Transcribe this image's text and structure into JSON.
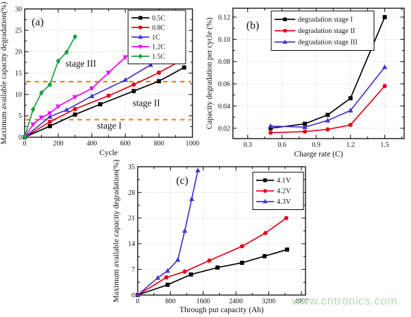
{
  "figure": {
    "watermark": "www.cntronics.com",
    "background": "#ffffff"
  },
  "colors": {
    "black": "#000000",
    "red": "#e60014",
    "blue": "#4433cc",
    "magenta": "#f400f4",
    "green": "#16a03c",
    "reference_orange": "#e08225",
    "grid": "#c9c9c9",
    "watermark_green": "#b7d8b7"
  },
  "chart_data": [
    {
      "id": "a",
      "type": "line",
      "panel_label": "(a)",
      "xlabel": "Cycle",
      "ylabel": "Maximum available capacity degradation(%)",
      "xlim": [
        0,
        1000
      ],
      "ylim": [
        0,
        30
      ],
      "xticks": [
        0,
        200,
        400,
        600,
        800,
        1000
      ],
      "xtick_labels": [
        "0",
        "200",
        "400",
        "600",
        "800",
        "1000"
      ],
      "yticks": [
        0,
        5,
        10,
        15,
        20,
        25,
        30
      ],
      "ytick_labels": [
        "0",
        "5",
        "10",
        "15",
        "20",
        "25",
        "30"
      ],
      "x_minor_step": 100,
      "y_minor_step": 2.5,
      "grid": true,
      "legend_position": "top-right",
      "series": [
        {
          "name": "0.5C",
          "color": "#000000",
          "marker": "square",
          "points": [
            [
              0,
              0
            ],
            [
              150,
              2.6
            ],
            [
              300,
              5.3
            ],
            [
              450,
              7.7
            ],
            [
              650,
              10.8
            ],
            [
              800,
              13.1
            ],
            [
              950,
              16.3
            ]
          ]
        },
        {
          "name": "0.8C",
          "color": "#e60014",
          "marker": "circle",
          "points": [
            [
              0,
              0
            ],
            [
              150,
              3.6
            ],
            [
              300,
              6.6
            ],
            [
              500,
              9.7
            ],
            [
              650,
              12.3
            ],
            [
              800,
              15.1
            ],
            [
              950,
              18.3
            ]
          ]
        },
        {
          "name": "1C",
          "color": "#4433cc",
          "marker": "triangle-up",
          "points": [
            [
              0,
              0
            ],
            [
              150,
              4.8
            ],
            [
              250,
              6.4
            ],
            [
              400,
              9.6
            ],
            [
              600,
              13.4
            ],
            [
              750,
              16.9
            ],
            [
              900,
              21.0
            ]
          ]
        },
        {
          "name": "1.2C",
          "color": "#f400f4",
          "marker": "triangle-down",
          "points": [
            [
              0,
              0
            ],
            [
              50,
              3.0
            ],
            [
              100,
              4.6
            ],
            [
              150,
              5.6
            ],
            [
              200,
              7.2
            ],
            [
              300,
              9.4
            ],
            [
              400,
              11.4
            ],
            [
              500,
              15.1
            ],
            [
              600,
              18.7
            ]
          ]
        },
        {
          "name": "1.5C",
          "color": "#16a03c",
          "marker": "diamond",
          "points": [
            [
              0,
              0
            ],
            [
              50,
              6.5
            ],
            [
              100,
              10.4
            ],
            [
              150,
              12.3
            ],
            [
              200,
              17.8
            ],
            [
              250,
              19.9
            ],
            [
              300,
              23.5
            ]
          ]
        }
      ],
      "reference_lines": [
        {
          "y": 4.1,
          "color": "#e08225",
          "style": "dashed"
        },
        {
          "y": 13.0,
          "color": "#e08225",
          "style": "dashed"
        }
      ],
      "annotations": [
        {
          "text": "stage I",
          "x": 505,
          "y": 2.0
        },
        {
          "text": "stage II",
          "x": 725,
          "y": 7.3
        },
        {
          "text": "stage III",
          "x": 335,
          "y": 16.5
        }
      ]
    },
    {
      "id": "b",
      "type": "line",
      "panel_label": "(b)",
      "xlabel": "Charge rate (C)",
      "ylabel": "Capacity degradation per cycle (%)",
      "xlim": [
        0.17,
        1.67
      ],
      "ylim": [
        0.0107,
        0.128
      ],
      "xticks": [
        0.3,
        0.6,
        0.9,
        1.2,
        1.5
      ],
      "xtick_labels": [
        "0.3",
        "0.6",
        "0.9",
        "1.2",
        "1.5"
      ],
      "yticks": [
        0.02,
        0.04,
        0.06,
        0.08,
        0.1,
        0.12
      ],
      "ytick_labels": [
        "0.02",
        "0.04",
        "0.06",
        "0.08",
        "0.10",
        "0.12"
      ],
      "x_minor_step": 0.15,
      "y_minor_step": 0.01,
      "grid": true,
      "legend_position": "top-right",
      "x": [
        0.5,
        0.8,
        1.0,
        1.2,
        1.5
      ],
      "series": [
        {
          "name": "degradation stage I",
          "color": "#000000",
          "marker": "square",
          "values": [
            0.02,
            0.024,
            0.032,
            0.047,
            0.12
          ]
        },
        {
          "name": "degradation stage II",
          "color": "#e60014",
          "marker": "circle",
          "values": [
            0.016,
            0.017,
            0.019,
            0.023,
            0.058
          ]
        },
        {
          "name": "degradation stage III",
          "color": "#4433cc",
          "marker": "triangle-up",
          "values": [
            0.022,
            0.021,
            0.027,
            0.036,
            0.075
          ]
        }
      ],
      "reference_lines": [],
      "annotations": []
    },
    {
      "id": "c",
      "type": "line",
      "panel_label": "(c)",
      "xlabel": "Through put capacity (Ah)",
      "ylabel": "Maximum available capacity degradation(%)",
      "xlim": [
        0,
        4100
      ],
      "ylim": [
        0,
        35
      ],
      "xticks": [
        0,
        800,
        1600,
        2400,
        3200,
        4000
      ],
      "xtick_labels": [
        "0",
        "800",
        "1600",
        "2400",
        "3200",
        "4000"
      ],
      "yticks": [
        0,
        7,
        14,
        21,
        28,
        35
      ],
      "ytick_labels": [
        "0",
        "7",
        "14",
        "21",
        "28",
        "35"
      ],
      "x_minor_step": 400,
      "y_minor_step": 3.5,
      "grid": true,
      "legend_position": "top-right",
      "series": [
        {
          "name": "4.1V",
          "color": "#000000",
          "marker": "square",
          "points": [
            [
              0,
              0
            ],
            [
              730,
              2.8
            ],
            [
              1300,
              5.6
            ],
            [
              1950,
              7.5
            ],
            [
              2550,
              8.8
            ],
            [
              3100,
              10.6
            ],
            [
              3650,
              12.4
            ]
          ]
        },
        {
          "name": "4.2V",
          "color": "#e60014",
          "marker": "circle",
          "points": [
            [
              0,
              0
            ],
            [
              700,
              4.8
            ],
            [
              1150,
              6.4
            ],
            [
              1750,
              9.4
            ],
            [
              2550,
              13.3
            ],
            [
              3120,
              16.9
            ],
            [
              3630,
              21.0
            ]
          ]
        },
        {
          "name": "4.3V",
          "color": "#4433cc",
          "marker": "triangle-up",
          "points": [
            [
              0,
              0
            ],
            [
              490,
              4.7
            ],
            [
              730,
              6.6
            ],
            [
              980,
              9.6
            ],
            [
              1150,
              17.5
            ],
            [
              1320,
              26.2
            ],
            [
              1470,
              34.0
            ]
          ]
        }
      ],
      "reference_lines": [],
      "annotations": []
    }
  ]
}
